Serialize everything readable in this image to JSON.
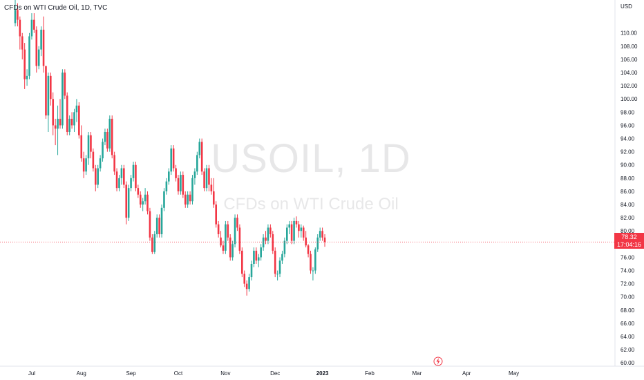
{
  "header": {
    "legend_text": "CFDs on WTI Crude Oil, 1D, TVC"
  },
  "watermark": {
    "symbol": "USOIL, 1D",
    "description": "CFDs on WTI Crude Oil"
  },
  "price_axis": {
    "currency": "USD"
  },
  "last_price": {
    "value": "78.32",
    "countdown": "17:04:16"
  },
  "colors": {
    "up": "#26a69a",
    "down": "#f23645",
    "last_price_line": "#f23645",
    "axis_text": "#131722"
  },
  "chart_data": {
    "type": "candlestick",
    "title": "CFDs on WTI Crude Oil, 1D, TVC",
    "ylim": [
      59.5,
      115
    ],
    "y_ticks": [
      60,
      62,
      64,
      66,
      68,
      70,
      72,
      74,
      76,
      78,
      80,
      82,
      84,
      86,
      88,
      90,
      92,
      94,
      96,
      98,
      100,
      102,
      104,
      106,
      108,
      110
    ],
    "x_ticks": [
      {
        "label": "Jul",
        "index": 7
      },
      {
        "label": "Aug",
        "index": 28
      },
      {
        "label": "Sep",
        "index": 49
      },
      {
        "label": "Oct",
        "index": 69
      },
      {
        "label": "Nov",
        "index": 89
      },
      {
        "label": "Dec",
        "index": 110
      },
      {
        "label": "2023",
        "index": 130
      },
      {
        "label": "Feb",
        "index": 150
      },
      {
        "label": "Mar",
        "index": 170
      },
      {
        "label": "Apr",
        "index": 191
      },
      {
        "label": "May",
        "index": 211
      }
    ],
    "candles": [
      [
        111.5,
        115,
        111,
        113.5
      ],
      [
        113.5,
        114.5,
        111,
        112
      ],
      [
        112,
        112.5,
        107.5,
        109.5
      ],
      [
        109.5,
        110,
        106,
        107.5
      ],
      [
        107.5,
        108.5,
        101.5,
        103
      ],
      [
        103,
        104.5,
        102,
        103.5
      ],
      [
        103.5,
        110,
        103,
        109.5
      ],
      [
        109.5,
        113,
        109,
        112
      ],
      [
        112,
        113,
        110,
        110.5
      ],
      [
        110.5,
        111,
        104,
        105
      ],
      [
        105,
        108,
        104.5,
        107.5
      ],
      [
        107.5,
        111,
        106.5,
        110.5
      ],
      [
        110.5,
        112.5,
        104,
        105
      ],
      [
        105,
        105,
        97,
        97.5
      ],
      [
        97.5,
        104,
        95,
        103.5
      ],
      [
        103.5,
        104,
        99,
        100
      ],
      [
        100,
        101,
        94.5,
        96
      ],
      [
        96,
        97,
        93,
        95.5
      ],
      [
        95.5,
        99,
        91.5,
        97
      ],
      [
        97,
        100,
        95.5,
        96
      ],
      [
        96,
        104.5,
        95.5,
        104
      ],
      [
        104,
        104.5,
        100,
        100.5
      ],
      [
        100.5,
        101,
        94.5,
        95
      ],
      [
        95,
        97.5,
        94.5,
        97
      ],
      [
        97,
        98,
        95.5,
        96
      ],
      [
        96,
        98.5,
        95,
        98
      ],
      [
        98,
        100,
        96.5,
        99
      ],
      [
        99,
        99.5,
        94,
        94.5
      ],
      [
        94.5,
        96,
        90.5,
        91
      ],
      [
        91,
        92,
        88,
        89
      ],
      [
        89,
        91.5,
        88.5,
        91
      ],
      [
        91,
        95,
        90,
        94.5
      ],
      [
        94.5,
        95,
        91,
        92
      ],
      [
        92,
        92.5,
        89,
        89.5
      ],
      [
        89.5,
        90,
        86,
        87
      ],
      [
        87,
        90,
        86.5,
        89.5
      ],
      [
        89.5,
        91.5,
        89,
        91
      ],
      [
        91,
        94,
        90.5,
        93.5
      ],
      [
        93.5,
        95.5,
        93,
        95
      ],
      [
        95,
        95.5,
        92,
        92.5
      ],
      [
        92.5,
        97.5,
        92,
        97
      ],
      [
        97,
        97.5,
        91,
        91.5
      ],
      [
        91.5,
        92,
        88.5,
        89
      ],
      [
        89,
        89.5,
        86,
        86.5
      ],
      [
        86.5,
        88.5,
        86,
        88
      ],
      [
        88,
        90,
        87,
        89.5
      ],
      [
        89.5,
        90,
        86.5,
        87
      ],
      [
        87,
        87.5,
        81,
        82
      ],
      [
        82,
        87,
        81.5,
        86.5
      ],
      [
        86.5,
        88.5,
        86,
        88
      ],
      [
        88,
        90.5,
        87.5,
        90
      ],
      [
        90,
        90.5,
        86,
        86.5
      ],
      [
        86.5,
        87,
        85,
        85.5
      ],
      [
        85.5,
        86,
        83.5,
        84
      ],
      [
        84,
        85,
        83,
        84.5
      ],
      [
        84.5,
        86.5,
        84,
        85.5
      ],
      [
        85.5,
        86,
        82.5,
        83
      ],
      [
        83,
        83.5,
        78.5,
        79
      ],
      [
        79,
        79.5,
        76.5,
        76.8
      ],
      [
        76.8,
        80,
        76.5,
        79.5
      ],
      [
        79.5,
        82.5,
        79,
        82
      ],
      [
        82,
        82.5,
        79,
        79.5
      ],
      [
        79.5,
        84,
        79,
        83.5
      ],
      [
        83.5,
        86.5,
        83,
        86
      ],
      [
        86,
        88,
        85.5,
        87.5
      ],
      [
        87.5,
        89.5,
        87,
        89
      ],
      [
        89,
        93,
        88.5,
        92.5
      ],
      [
        92.5,
        93,
        89,
        89.5
      ],
      [
        89.5,
        90,
        87.5,
        88
      ],
      [
        88,
        88.5,
        85.5,
        86
      ],
      [
        86,
        89,
        85.5,
        88.5
      ],
      [
        88.5,
        89,
        85,
        85.5
      ],
      [
        85.5,
        86,
        83.5,
        84
      ],
      [
        84,
        86,
        83.5,
        85.5
      ],
      [
        85.5,
        86,
        84,
        84.5
      ],
      [
        84.5,
        88.5,
        84,
        88
      ],
      [
        88,
        89.5,
        87,
        89
      ],
      [
        89,
        92,
        88.5,
        91.5
      ],
      [
        91.5,
        94,
        91,
        93.5
      ],
      [
        93.5,
        94,
        88.5,
        89
      ],
      [
        89,
        89.5,
        86,
        86.5
      ],
      [
        86.5,
        90,
        86,
        89.5
      ],
      [
        89.5,
        90,
        86,
        87
      ],
      [
        87,
        88,
        85.5,
        86
      ],
      [
        86,
        88,
        83.5,
        84
      ],
      [
        84,
        84.5,
        80.5,
        81
      ],
      [
        81,
        81.5,
        79,
        79.5
      ],
      [
        79,
        80,
        77.5,
        77.8
      ],
      [
        77.8,
        78.5,
        76.5,
        77
      ],
      [
        77,
        81.5,
        76.5,
        81
      ],
      [
        81,
        81.5,
        78.5,
        79
      ],
      [
        79,
        79.5,
        75.5,
        76
      ],
      [
        76,
        78.5,
        75.5,
        78
      ],
      [
        78,
        82.5,
        77.5,
        82
      ],
      [
        82,
        82.5,
        80,
        80.5
      ],
      [
        80.5,
        81,
        76.5,
        77
      ],
      [
        77,
        77.5,
        73,
        73.5
      ],
      [
        73.5,
        74,
        71.5,
        72
      ],
      [
        72,
        72.5,
        70.2,
        71.2
      ],
      [
        71.2,
        73.5,
        70.8,
        73
      ],
      [
        73,
        75.5,
        72.5,
        75
      ],
      [
        75,
        77.5,
        74.5,
        77
      ],
      [
        77,
        77.5,
        75,
        75.5
      ],
      [
        75.5,
        76.5,
        74.5,
        76
      ],
      [
        76,
        78,
        75.5,
        77.5
      ],
      [
        77.5,
        79.5,
        77,
        79
      ],
      [
        79,
        80,
        78,
        78.5
      ],
      [
        78.5,
        81,
        78,
        80.5
      ],
      [
        80.5,
        81,
        79,
        79.5
      ],
      [
        79.5,
        80,
        76.5,
        77
      ],
      [
        77,
        77.5,
        73,
        73.5
      ],
      [
        73.5,
        74,
        72.5,
        73.5
      ],
      [
        73.5,
        76,
        73,
        75.5
      ],
      [
        75.5,
        77,
        75,
        76.5
      ],
      [
        76.5,
        79,
        76,
        78.5
      ],
      [
        78.5,
        81,
        78,
        80.5
      ],
      [
        80.5,
        81.5,
        79.5,
        81
      ],
      [
        81,
        81.5,
        78,
        78.5
      ],
      [
        78.5,
        82,
        78,
        81.5
      ],
      [
        81.5,
        82.2,
        80.5,
        81
      ],
      [
        81,
        81.5,
        79,
        80
      ],
      [
        80,
        81,
        79,
        80.5
      ],
      [
        80.5,
        80.8,
        78.5,
        79
      ],
      [
        79,
        80,
        77.5,
        77.8
      ],
      [
        77.8,
        78,
        76,
        76.5
      ],
      [
        76.5,
        77,
        73.5,
        74
      ],
      [
        74,
        74.5,
        72.5,
        74
      ],
      [
        74,
        77.5,
        73.5,
        77.2
      ],
      [
        77.2,
        79.5,
        76.8,
        79
      ],
      [
        79,
        80.5,
        78.5,
        80
      ],
      [
        80,
        80.5,
        78.5,
        79
      ],
      [
        79,
        79.5,
        77.6,
        78.32
      ]
    ],
    "last_price": 78.32
  }
}
